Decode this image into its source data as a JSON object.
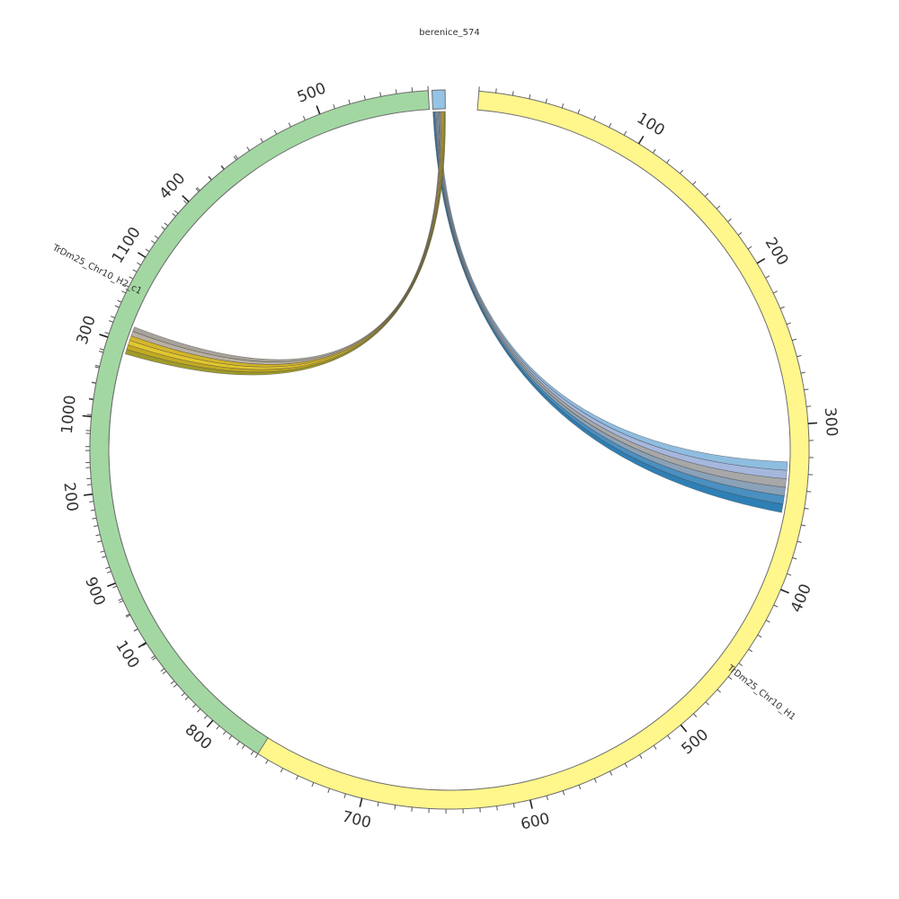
{
  "figure": {
    "title": "berenice_574"
  },
  "segments": [
    {
      "id": "trdm25-chr10-h1",
      "label": "TrDm25_Chr10_H1",
      "color": "#fff68c",
      "max": 1185,
      "arcs": [
        {
          "from_pos": 0,
          "to_pos": 1185,
          "start_deg": 4.7,
          "end_deg": 325.3
        }
      ],
      "major_ticks": [
        100,
        200,
        300,
        400,
        500,
        600,
        700,
        800,
        900,
        1000,
        1100
      ],
      "major_tick_labels": [
        "100",
        "200",
        "300",
        "400",
        "500",
        "600",
        "700",
        "800",
        "900",
        "1000",
        "1100"
      ],
      "minor_tick_step": 10,
      "label_deg": 128
    },
    {
      "id": "trdm25-chr10-h2-c1",
      "label": "TrDm25_Chr10_H2_c1",
      "color": "#a2d7a2",
      "max": 570,
      "arcs": [
        {
          "from_pos": 0,
          "to_pos": 570,
          "start_deg": 212.2,
          "end_deg": 356.6
        }
      ],
      "major_ticks": [
        100,
        200,
        300,
        400,
        500
      ],
      "major_tick_labels": [
        "100",
        "200",
        "300",
        "400",
        "500"
      ],
      "minor_tick_step": 10,
      "label_deg": 297
    },
    {
      "id": "berenice-574",
      "label": "",
      "color": "#95c3e6",
      "max": 6,
      "arcs": [
        {
          "from_pos": 0,
          "to_pos": 6,
          "start_deg": 357.2,
          "end_deg": 359.3
        }
      ],
      "major_ticks": [],
      "major_tick_labels": [],
      "minor_tick_step": 0
    }
  ],
  "links": [
    {
      "source": "berenice-574",
      "source_range": [
        0,
        3
      ],
      "target": "trdm25-chr10-h1",
      "target_range": [
        323,
        355
      ],
      "colors": [
        "#2e7fb5",
        "#4a90c0",
        "#8aa2b8",
        "#a8a8a8",
        "#a5b7dd",
        "#8fbde0"
      ]
    },
    {
      "source": "berenice-574",
      "source_range": [
        3,
        6
      ],
      "target": "trdm25-chr10-h2-c1",
      "target_range": [
        293,
        312
      ],
      "colors": [
        "#a8a399",
        "#b8b0a4",
        "#d4b62a",
        "#e2c62e",
        "#c2aa22",
        "#9f9a2c"
      ]
    }
  ]
}
